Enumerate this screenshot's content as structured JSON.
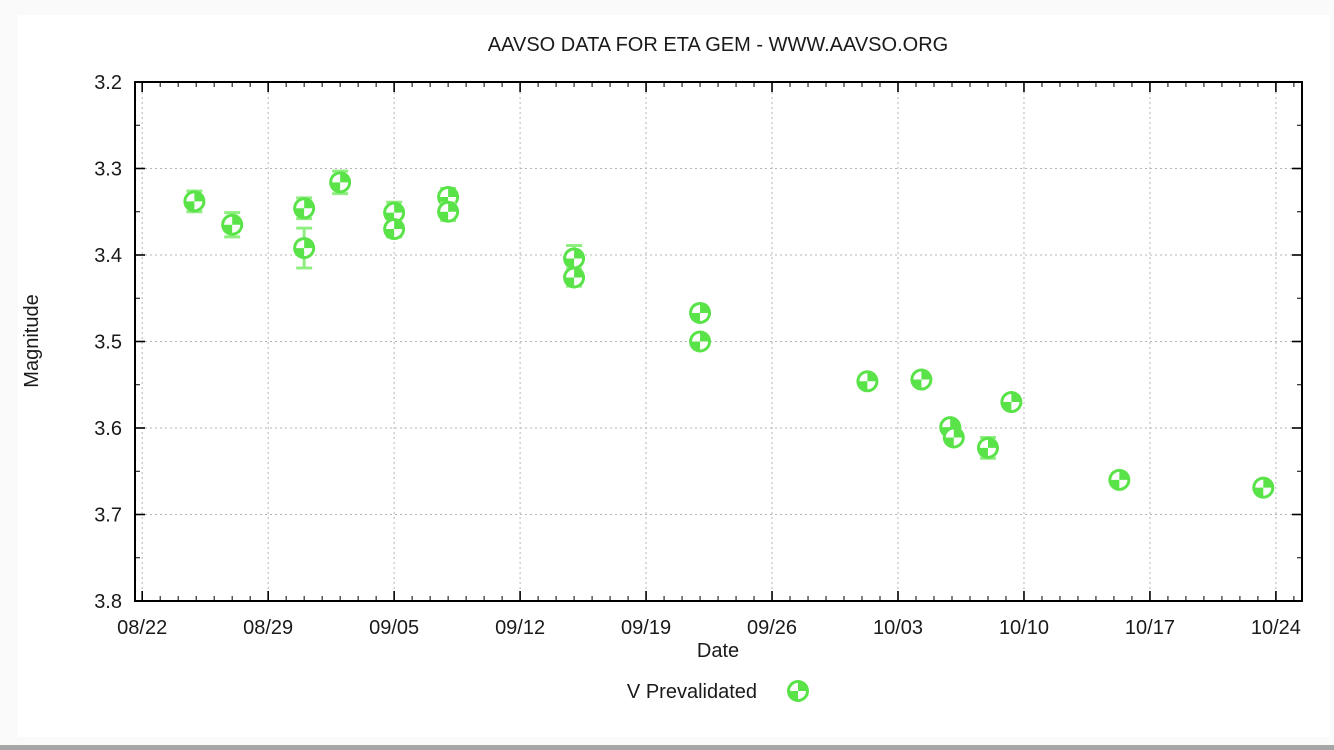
{
  "page": {
    "background_color": "#fafafa",
    "panel_color": "#ffffff",
    "bottom_bar_color": "#a6a6a6"
  },
  "chart_data": {
    "type": "scatter",
    "title": "AAVSO DATA FOR ETA GEM - WWW.AAVSO.ORG",
    "xlabel": "Date",
    "ylabel": "Magnitude",
    "grid": true,
    "x_axis": {
      "tick_labels": [
        "08/22",
        "08/29",
        "09/05",
        "09/12",
        "09/19",
        "09/26",
        "10/03",
        "10/10",
        "10/17",
        "10/24"
      ],
      "tick_days": [
        0,
        7,
        14,
        21,
        28,
        35,
        42,
        49,
        56,
        63
      ],
      "range_days": [
        -0.4,
        64.45
      ],
      "minor_tick_interval_days": 1
    },
    "y_axis": {
      "tick_labels": [
        "3.2",
        "3.3",
        "3.4",
        "3.5",
        "3.6",
        "3.7",
        "3.8"
      ],
      "tick_values": [
        3.2,
        3.3,
        3.4,
        3.5,
        3.6,
        3.7,
        3.8
      ],
      "range": [
        3.2,
        3.8
      ],
      "inverted": true,
      "minor_tick_interval": 0.05
    },
    "legend": {
      "label": "V Prevalidated",
      "position": "bottom-center"
    },
    "colors": {
      "marker_green": "#59e348",
      "errorbar_green": "#8fee80",
      "grid_gray": "#b5b5b5",
      "axis_black": "#000000",
      "text_color": "#1a1a1a"
    },
    "series": [
      {
        "name": "V Prevalidated",
        "band": "V",
        "validation": "Prevalidated",
        "points": [
          {
            "date": "08/25",
            "day": 2.9,
            "mag": 3.338,
            "err": 0.012
          },
          {
            "date": "08/27",
            "day": 5.0,
            "mag": 3.365,
            "err": 0.014
          },
          {
            "date": "08/31",
            "day": 9.0,
            "mag": 3.346,
            "err": 0.012
          },
          {
            "date": "08/31",
            "day": 9.0,
            "mag": 3.392,
            "err": 0.023
          },
          {
            "date": "09/02",
            "day": 11.0,
            "mag": 3.316,
            "err": 0.013
          },
          {
            "date": "09/05",
            "day": 14.0,
            "mag": 3.351,
            "err": 0.012
          },
          {
            "date": "09/05",
            "day": 14.0,
            "mag": 3.37,
            "err": 0.009
          },
          {
            "date": "09/08",
            "day": 17.0,
            "mag": 3.333,
            "err": 0.01
          },
          {
            "date": "09/08",
            "day": 17.0,
            "mag": 3.35,
            "err": 0.01
          },
          {
            "date": "09/15",
            "day": 24.0,
            "mag": 3.404,
            "err": 0.015
          },
          {
            "date": "09/15",
            "day": 24.0,
            "mag": 3.426,
            "err": 0.01
          },
          {
            "date": "09/22",
            "day": 31.0,
            "mag": 3.467,
            "err": 0.006
          },
          {
            "date": "09/22",
            "day": 31.0,
            "mag": 3.5,
            "err": 0.006
          },
          {
            "date": "10/01",
            "day": 40.3,
            "mag": 3.546,
            "err": 0.005
          },
          {
            "date": "10/04",
            "day": 43.3,
            "mag": 3.544,
            "err": 0.005
          },
          {
            "date": "10/06",
            "day": 44.9,
            "mag": 3.599,
            "err": 0.005
          },
          {
            "date": "10/06",
            "day": 45.1,
            "mag": 3.611,
            "err": 0.005
          },
          {
            "date": "10/08",
            "day": 47.0,
            "mag": 3.623,
            "err": 0.012
          },
          {
            "date": "10/09",
            "day": 48.3,
            "mag": 3.57,
            "err": 0.005
          },
          {
            "date": "10/15",
            "day": 54.3,
            "mag": 3.66,
            "err": 0.006
          },
          {
            "date": "10/23",
            "day": 62.3,
            "mag": 3.669,
            "err": 0.006
          }
        ]
      }
    ]
  }
}
